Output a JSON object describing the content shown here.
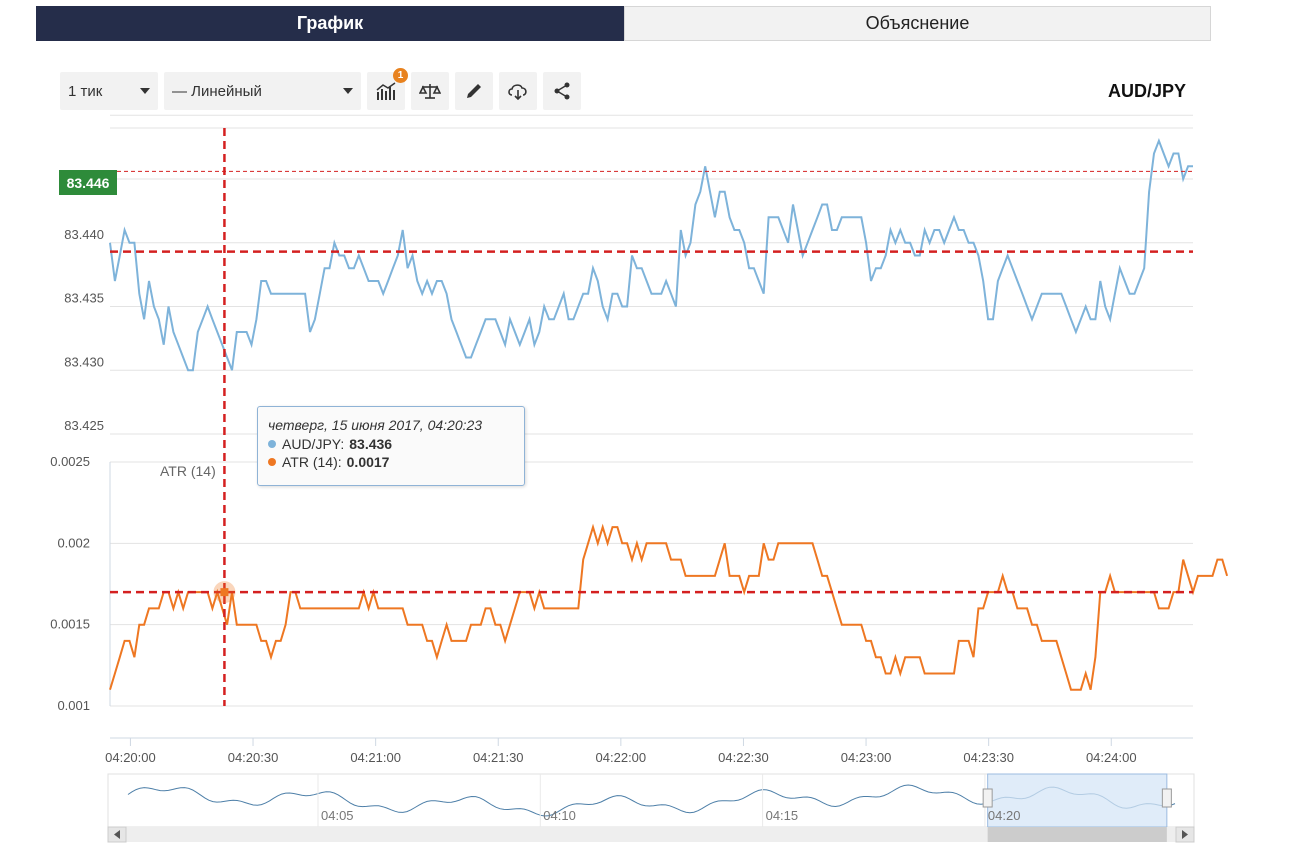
{
  "tabs": [
    {
      "label": "График",
      "active": true
    },
    {
      "label": "Объяснение",
      "active": false
    }
  ],
  "toolbar": {
    "interval": "1 тик",
    "chart_type": "— Линейный",
    "indicators_badge": "1"
  },
  "symbol": "AUD/JPY",
  "current_price": "83.446",
  "tooltip": {
    "date": "четверг, 15 июня 2017, 04:20:23",
    "price_label": "AUD/JPY:",
    "price_value": "83.436",
    "atr_label": "ATR (14):",
    "atr_value": "0.0017"
  },
  "colors": {
    "price": "#7eb3da",
    "atr": "#ee7722",
    "crosshair": "#d42020",
    "price_badge": "#2e8b3a",
    "navigator_fill": "#d6e6f7"
  },
  "chart_data": [
    {
      "type": "line",
      "series": [
        {
          "name": "AUD/JPY",
          "values": [
            83.44,
            83.437,
            83.439,
            83.441,
            83.44,
            83.44,
            83.436,
            83.434,
            83.437,
            83.435,
            83.434,
            83.432,
            83.435,
            83.433,
            83.432,
            83.431,
            83.43,
            83.43,
            83.433,
            83.434,
            83.435,
            83.434,
            83.433,
            83.432,
            83.431,
            83.43,
            83.433,
            83.433,
            83.433,
            83.432,
            83.434,
            83.437,
            83.437,
            83.436,
            83.436,
            83.436,
            83.436,
            83.436,
            83.436,
            83.436,
            83.436,
            83.433,
            83.434,
            83.436,
            83.438,
            83.438,
            83.44,
            83.439,
            83.439,
            83.438,
            83.438,
            83.439,
            83.438,
            83.437,
            83.437,
            83.437,
            83.436,
            83.437,
            83.438,
            83.439,
            83.441,
            83.438,
            83.439,
            83.437,
            83.436,
            83.437,
            83.436,
            83.437,
            83.437,
            83.436,
            83.434,
            83.433,
            83.432,
            83.431,
            83.431,
            83.432,
            83.433,
            83.434,
            83.434,
            83.434,
            83.433,
            83.432,
            83.434,
            83.433,
            83.432,
            83.433,
            83.434,
            83.432,
            83.433,
            83.435,
            83.434,
            83.434,
            83.435,
            83.436,
            83.434,
            83.434,
            83.435,
            83.436,
            83.436,
            83.438,
            83.437,
            83.435,
            83.434,
            83.436,
            83.436,
            83.435,
            83.435,
            83.439,
            83.438,
            83.438,
            83.437,
            83.436,
            83.436,
            83.436,
            83.437,
            83.436,
            83.435,
            83.441,
            83.439,
            83.44,
            83.443,
            83.444,
            83.446,
            83.444,
            83.442,
            83.444,
            83.444,
            83.442,
            83.441,
            83.441,
            83.44,
            83.438,
            83.438,
            83.437,
            83.436,
            83.442,
            83.442,
            83.442,
            83.441,
            83.44,
            83.443,
            83.441,
            83.439,
            83.44,
            83.441,
            83.442,
            83.443,
            83.443,
            83.441,
            83.441,
            83.442,
            83.442,
            83.442,
            83.442,
            83.442,
            83.44,
            83.437,
            83.438,
            83.438,
            83.439,
            83.441,
            83.44,
            83.441,
            83.44,
            83.44,
            83.439,
            83.439,
            83.441,
            83.44,
            83.441,
            83.441,
            83.44,
            83.441,
            83.442,
            83.441,
            83.441,
            83.44,
            83.44,
            83.439,
            83.437,
            83.434,
            83.434,
            83.437,
            83.438,
            83.439,
            83.438,
            83.437,
            83.436,
            83.435,
            83.434,
            83.435,
            83.436,
            83.436,
            83.436,
            83.436,
            83.436,
            83.435,
            83.434,
            83.433,
            83.434,
            83.435,
            83.434,
            83.434,
            83.437,
            83.435,
            83.434,
            83.436,
            83.438,
            83.437,
            83.436,
            83.436,
            83.437,
            83.438,
            83.444,
            83.447,
            83.448,
            83.447,
            83.446,
            83.447,
            83.447,
            83.445,
            83.446,
            83.446
          ]
        },
        {
          "name": "ATR (14)",
          "values": [
            0.0011,
            0.0012,
            0.0013,
            0.0014,
            0.0014,
            0.0013,
            0.0015,
            0.0015,
            0.0016,
            0.0016,
            0.0016,
            0.0017,
            0.0017,
            0.0016,
            0.0017,
            0.0016,
            0.0017,
            0.0017,
            0.0017,
            0.0017,
            0.0017,
            0.0016,
            0.0017,
            0.0016,
            0.0015,
            0.0017,
            0.0015,
            0.0015,
            0.0015,
            0.0015,
            0.0015,
            0.0014,
            0.0014,
            0.0013,
            0.0014,
            0.0014,
            0.0015,
            0.0017,
            0.0017,
            0.0016,
            0.0016,
            0.0016,
            0.0016,
            0.0016,
            0.0016,
            0.0016,
            0.0016,
            0.0016,
            0.0016,
            0.0016,
            0.0016,
            0.0016,
            0.0017,
            0.0016,
            0.0017,
            0.0016,
            0.0016,
            0.0016,
            0.0016,
            0.0016,
            0.0016,
            0.0015,
            0.0015,
            0.0015,
            0.0015,
            0.0014,
            0.0014,
            0.0013,
            0.0014,
            0.0015,
            0.0014,
            0.0014,
            0.0014,
            0.0014,
            0.0015,
            0.0015,
            0.0015,
            0.0016,
            0.0016,
            0.0015,
            0.0015,
            0.0014,
            0.0015,
            0.0016,
            0.0017,
            0.0017,
            0.0017,
            0.0016,
            0.0017,
            0.0016,
            0.0016,
            0.0016,
            0.0016,
            0.0016,
            0.0016,
            0.0016,
            0.0016,
            0.0019,
            0.002,
            0.0021,
            0.002,
            0.0021,
            0.002,
            0.0021,
            0.0021,
            0.002,
            0.002,
            0.0019,
            0.002,
            0.0019,
            0.002,
            0.002,
            0.002,
            0.002,
            0.002,
            0.0019,
            0.0019,
            0.0019,
            0.0018,
            0.0018,
            0.0018,
            0.0018,
            0.0018,
            0.0018,
            0.0018,
            0.0019,
            0.002,
            0.0018,
            0.0018,
            0.0018,
            0.0017,
            0.0018,
            0.0018,
            0.0018,
            0.002,
            0.0019,
            0.0019,
            0.002,
            0.002,
            0.002,
            0.002,
            0.002,
            0.002,
            0.002,
            0.002,
            0.0019,
            0.0018,
            0.0018,
            0.0017,
            0.0016,
            0.0015,
            0.0015,
            0.0015,
            0.0015,
            0.0015,
            0.0014,
            0.0014,
            0.0013,
            0.0013,
            0.0012,
            0.0012,
            0.0013,
            0.0012,
            0.0013,
            0.0013,
            0.0013,
            0.0013,
            0.0012,
            0.0012,
            0.0012,
            0.0012,
            0.0012,
            0.0012,
            0.0012,
            0.0014,
            0.0014,
            0.0014,
            0.0013,
            0.0016,
            0.0016,
            0.0017,
            0.0017,
            0.0017,
            0.0018,
            0.0017,
            0.0017,
            0.0016,
            0.0016,
            0.0016,
            0.0015,
            0.0015,
            0.0014,
            0.0014,
            0.0014,
            0.0014,
            0.0013,
            0.0012,
            0.0011,
            0.0011,
            0.0011,
            0.0012,
            0.0011,
            0.0013,
            0.0017,
            0.0017,
            0.0018,
            0.0017,
            0.0017,
            0.0017,
            0.0017,
            0.0017,
            0.0017,
            0.0017,
            0.0017,
            0.0017,
            0.0016,
            0.0016,
            0.0016,
            0.0017,
            0.0017,
            0.0019,
            0.0018,
            0.0017,
            0.0018,
            0.0018,
            0.0018,
            0.0018,
            0.0019,
            0.0019,
            0.0018
          ]
        }
      ],
      "x_start": "04:19:55",
      "x_end": "04:24:20",
      "ylim": [
        83.425,
        83.449
      ],
      "y_ticks": [
        "83.425",
        "83.430",
        "83.435",
        "83.440"
      ],
      "x_ticks": [
        "04:20:00",
        "04:20:30",
        "04:21:00",
        "04:21:30",
        "04:22:00",
        "04:22:30",
        "04:23:00",
        "04:23:30",
        "04:24:00"
      ],
      "crosshair": {
        "x": "04:20:23",
        "y": 83.4393
      },
      "current_price_line": 83.4456
    },
    {
      "type": "line",
      "series": [
        {
          "name": "ATR (14)"
        }
      ],
      "ylim": [
        0.001,
        0.0025
      ],
      "y_ticks": [
        "0.001",
        "0.0015",
        "0.002",
        "0.0025"
      ],
      "indicator_label": "ATR (14)",
      "crosshair_y": 0.0017
    },
    {
      "type": "area",
      "title": "navigator",
      "x_ticks": [
        "04:05",
        "04:10",
        "04:15",
        "04:20"
      ],
      "selection": {
        "from_fraction": 0.81,
        "to_fraction": 0.975
      }
    }
  ]
}
